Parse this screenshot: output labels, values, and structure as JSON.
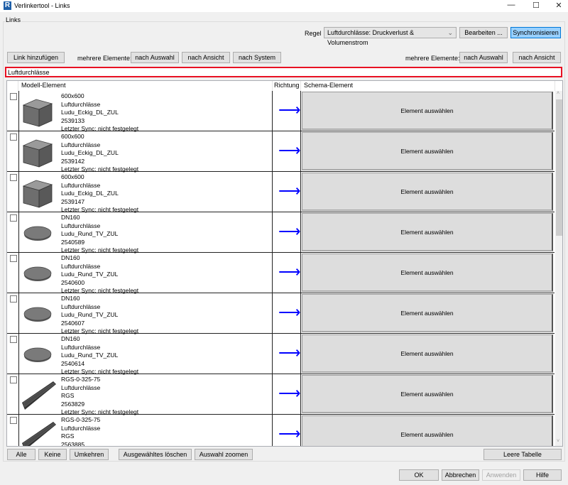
{
  "window": {
    "title": "Verlinkertool - Links",
    "logo": "R",
    "minimize": "—",
    "maximize": "☐",
    "close": "✕"
  },
  "group_label": "Links",
  "rule": {
    "label": "Regel",
    "value": "Luftdurchlässe: Druckverlust & Volumenstrom",
    "edit": "Bearbeiten ...",
    "sync": "Synchronisieren"
  },
  "toolbar_left": {
    "add_link": "Link hinzufügen",
    "multi_label": "mehrere Elemente:",
    "by_selection": "nach Auswahl",
    "by_view": "nach Ansicht",
    "by_system": "nach System"
  },
  "toolbar_right": {
    "multi_label": "mehrere Elemente:",
    "by_selection": "nach Auswahl",
    "by_view": "nach Ansicht"
  },
  "search": {
    "value": "Luftdurchlässe"
  },
  "table": {
    "columns": [
      "Modell-Element",
      "Richtung",
      "Schema-Element"
    ],
    "arrow": "⟶",
    "select_label": "Element auswählen",
    "rows": [
      {
        "shape": "box",
        "lines": [
          "600x600",
          "Luftdurchlässe",
          "Ludu_Eckig_DL_ZUL",
          "2539133",
          "Letzter Sync: nicht festgelegt"
        ]
      },
      {
        "shape": "box",
        "lines": [
          "600x600",
          "Luftdurchlässe",
          "Ludu_Eckig_DL_ZUL",
          "2539142",
          "Letzter Sync: nicht festgelegt"
        ]
      },
      {
        "shape": "box",
        "lines": [
          "600x600",
          "Luftdurchlässe",
          "Ludu_Eckig_DL_ZUL",
          "2539147",
          "Letzter Sync: nicht festgelegt"
        ]
      },
      {
        "shape": "disc",
        "lines": [
          "DN160",
          "Luftdurchlässe",
          "Ludu_Rund_TV_ZUL",
          "2540589",
          "Letzter Sync: nicht festgelegt"
        ]
      },
      {
        "shape": "disc",
        "lines": [
          "DN160",
          "Luftdurchlässe",
          "Ludu_Rund_TV_ZUL",
          "2540600",
          "Letzter Sync: nicht festgelegt"
        ]
      },
      {
        "shape": "disc",
        "lines": [
          "DN160",
          "Luftdurchlässe",
          "Ludu_Rund_TV_ZUL",
          "2540607",
          "Letzter Sync: nicht festgelegt"
        ]
      },
      {
        "shape": "disc",
        "lines": [
          "DN160",
          "Luftdurchlässe",
          "Ludu_Rund_TV_ZUL",
          "2540614",
          "Letzter Sync: nicht festgelegt"
        ]
      },
      {
        "shape": "grille",
        "lines": [
          "RGS-0-325-75",
          "Luftdurchlässe",
          "RGS",
          "2563829",
          "Letzter Sync: nicht festgelegt"
        ]
      },
      {
        "shape": "grille",
        "lines": [
          "RGS-0-325-75",
          "Luftdurchlässe",
          "RGS",
          "2563885",
          ""
        ]
      }
    ]
  },
  "bottom": {
    "all": "Alle",
    "none": "Keine",
    "invert": "Umkehren",
    "delete_selected": "Ausgewähltes löschen",
    "zoom_selection": "Auswahl zoomen",
    "clear_table": "Leere Tabelle"
  },
  "dialog": {
    "ok": "OK",
    "cancel": "Abbrechen",
    "apply": "Anwenden",
    "help": "Hilfe"
  }
}
